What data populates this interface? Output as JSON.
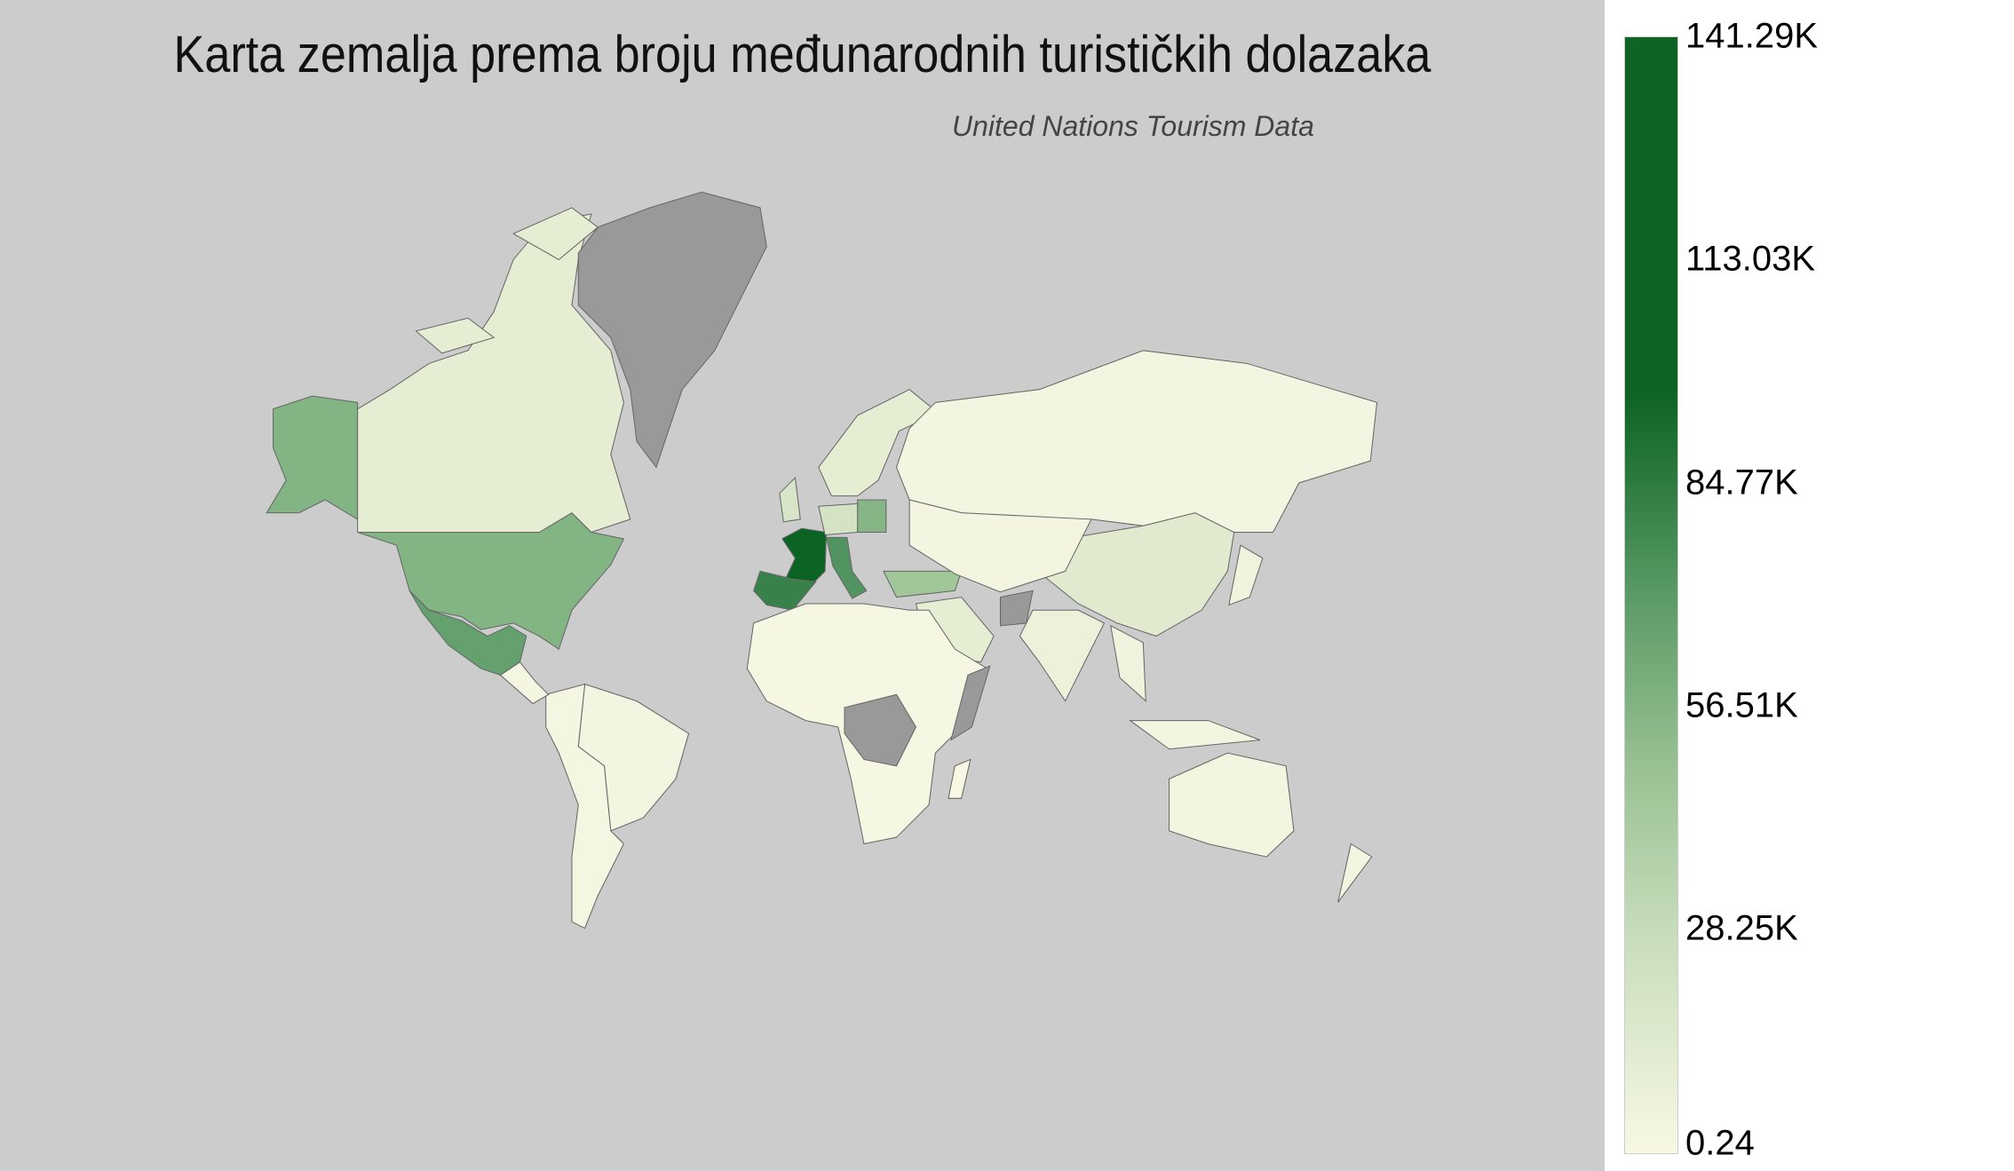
{
  "title": "Karta zemalja prema broju međunarodnih turističkih dolazaka",
  "subtitle": "United Nations Tourism Data",
  "colors": {
    "background": "#cccccc",
    "no_data": "#999999",
    "border": "#666666",
    "scale_low": "#f8f8e4",
    "scale_high": "#0d6424"
  },
  "chart_data": {
    "type": "choropleth",
    "title": "Karta zemalja prema broju međunarodnih turističkih dolazaka",
    "subtitle": "United Nations Tourism Data",
    "colorbar": {
      "min": 0.24,
      "max": 141290,
      "ticks": [
        "141.29K",
        "113.03K",
        "84.77K",
        "56.51K",
        "28.25K",
        "0.24"
      ],
      "colormap": "Greens"
    },
    "regions": [
      {
        "name": "France",
        "value": 90000
      },
      {
        "name": "Spain",
        "value": 58000
      },
      {
        "name": "Italy",
        "value": 50000
      },
      {
        "name": "Mexico",
        "value": 45000
      },
      {
        "name": "United States",
        "value": 36000
      },
      {
        "name": "Poland",
        "value": 35000
      },
      {
        "name": "Turkey",
        "value": 27000
      },
      {
        "name": "Germany",
        "value": 16000
      },
      {
        "name": "United Kingdom",
        "value": 15000
      },
      {
        "name": "Scandinavia",
        "value": 10000
      },
      {
        "name": "Canada",
        "value": 10000
      },
      {
        "name": "China",
        "value": 12000
      },
      {
        "name": "Saudi Arabia",
        "value": 10000
      },
      {
        "name": "India",
        "value": 6000
      },
      {
        "name": "Russia",
        "value": 3000
      },
      {
        "name": "Central Asia",
        "value": 2500
      },
      {
        "name": "Southeast Asia",
        "value": 4000
      },
      {
        "name": "Japan",
        "value": 4000
      },
      {
        "name": "Indonesia",
        "value": 3000
      },
      {
        "name": "Australia",
        "value": 3000
      },
      {
        "name": "New Zealand",
        "value": 2500
      },
      {
        "name": "Brazil",
        "value": 3000
      },
      {
        "name": "South America",
        "value": 1500
      },
      {
        "name": "Central America",
        "value": 2000
      },
      {
        "name": "Africa",
        "value": 800
      },
      {
        "name": "Madagascar",
        "value": 500
      },
      {
        "name": "Greenland",
        "value": null
      },
      {
        "name": "DR Congo",
        "value": null
      },
      {
        "name": "Somalia",
        "value": null
      },
      {
        "name": "Afghanistan",
        "value": null
      }
    ]
  }
}
